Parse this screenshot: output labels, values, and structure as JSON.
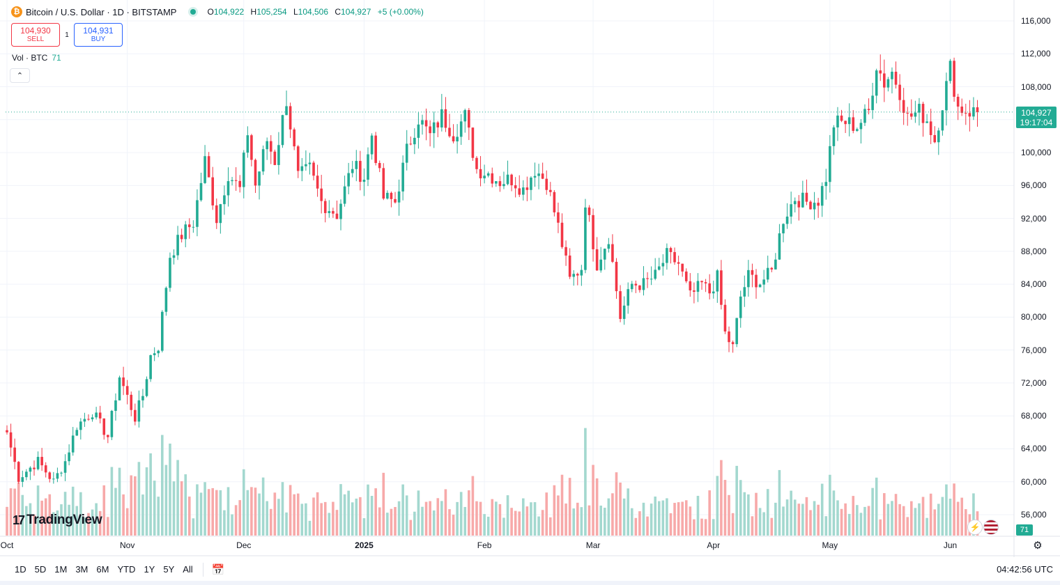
{
  "header": {
    "symbol": "Bitcoin / U.S. Dollar · 1D · BITSTAMP",
    "coin_glyph": "₿",
    "ohlc": {
      "o_label": "O",
      "o": "104,922",
      "h_label": "H",
      "h": "105,254",
      "l_label": "L",
      "l": "104,506",
      "c_label": "C",
      "c": "104,927",
      "change": "+5 (+0.00%)"
    }
  },
  "trade": {
    "sell_price": "104,930",
    "sell_label": "SELL",
    "spread": "1",
    "buy_price": "104,931",
    "buy_label": "BUY"
  },
  "volume_legend": {
    "label": "Vol · BTC",
    "value": "71"
  },
  "collapse_glyph": "⌃",
  "last_price_tag": {
    "price": "104,927",
    "countdown": "19:17:04"
  },
  "volume_tag": "71",
  "logo": {
    "mark": "17",
    "text": "TradingView"
  },
  "toolbar": {
    "ranges": [
      "1D",
      "5D",
      "1M",
      "3M",
      "6M",
      "YTD",
      "1Y",
      "5Y",
      "All"
    ],
    "date_range_glyph": "📅",
    "clock": "04:42:56 UTC"
  },
  "colors": {
    "up": "#22ab94",
    "down": "#f23645",
    "up_vol": "#a3d8cf",
    "down_vol": "#f7a9a9",
    "grid": "#f0f3fa",
    "last_price": "#22ab94"
  },
  "chart_data": {
    "type": "candlestick",
    "y_ticks": [
      116000,
      112000,
      108000,
      104000,
      100000,
      96000,
      92000,
      88000,
      84000,
      80000,
      76000,
      72000,
      68000,
      64000,
      60000,
      56000
    ],
    "y_tick_labels": [
      "116,000",
      "112,000",
      "108,000",
      "104,000",
      "100,000",
      "96,000",
      "92,000",
      "88,000",
      "84,000",
      "80,000",
      "76,000",
      "72,000",
      "68,000",
      "64,000",
      "60,000",
      "56,000"
    ],
    "ylim": [
      55500,
      117000
    ],
    "x_labels": [
      {
        "label": "Oct",
        "index": 0
      },
      {
        "label": "Nov",
        "index": 31
      },
      {
        "label": "Dec",
        "index": 61
      },
      {
        "label": "2025",
        "index": 92
      },
      {
        "label": "Feb",
        "index": 123
      },
      {
        "label": "Mar",
        "index": 151
      },
      {
        "label": "Apr",
        "index": 182
      },
      {
        "label": "May",
        "index": 212
      },
      {
        "label": "Jun",
        "index": 243
      }
    ],
    "last_price": 104927,
    "anchors": [
      [
        0,
        66000
      ],
      [
        3,
        60500
      ],
      [
        8,
        62500
      ],
      [
        12,
        60000
      ],
      [
        15,
        62500
      ],
      [
        18,
        66800
      ],
      [
        22,
        68500
      ],
      [
        26,
        65500
      ],
      [
        29,
        72800
      ],
      [
        33,
        67800
      ],
      [
        35,
        70500
      ],
      [
        37,
        75300
      ],
      [
        39,
        76500
      ],
      [
        42,
        87500
      ],
      [
        45,
        90000
      ],
      [
        48,
        91500
      ],
      [
        51,
        99000
      ],
      [
        54,
        92000
      ],
      [
        57,
        97500
      ],
      [
        60,
        95500
      ],
      [
        62,
        102500
      ],
      [
        64,
        96000
      ],
      [
        67,
        101500
      ],
      [
        69,
        99000
      ],
      [
        72,
        106500
      ],
      [
        75,
        97000
      ],
      [
        78,
        98000
      ],
      [
        81,
        94000
      ],
      [
        85,
        92500
      ],
      [
        89,
        98500
      ],
      [
        92,
        97000
      ],
      [
        94,
        102200
      ],
      [
        97,
        94500
      ],
      [
        100,
        94000
      ],
      [
        103,
        100200
      ],
      [
        106,
        104200
      ],
      [
        109,
        102000
      ],
      [
        112,
        104500
      ],
      [
        115,
        102300
      ],
      [
        118,
        104400
      ],
      [
        121,
        98000
      ],
      [
        124,
        97500
      ],
      [
        127,
        96500
      ],
      [
        130,
        96800
      ],
      [
        133,
        95500
      ],
      [
        136,
        98000
      ],
      [
        139,
        96500
      ],
      [
        142,
        91000
      ],
      [
        145,
        84500
      ],
      [
        148,
        86000
      ],
      [
        149,
        94200
      ],
      [
        152,
        86500
      ],
      [
        155,
        89800
      ],
      [
        158,
        80000
      ],
      [
        161,
        84000
      ],
      [
        164,
        84000
      ],
      [
        167,
        85000
      ],
      [
        170,
        87500
      ],
      [
        173,
        86500
      ],
      [
        176,
        82500
      ],
      [
        179,
        84000
      ],
      [
        181,
        83000
      ],
      [
        183,
        84800
      ],
      [
        185,
        78000
      ],
      [
        187,
        76300
      ],
      [
        189,
        82500
      ],
      [
        191,
        85000
      ],
      [
        194,
        84200
      ],
      [
        197,
        85500
      ],
      [
        200,
        92000
      ],
      [
        203,
        94500
      ],
      [
        206,
        94000
      ],
      [
        209,
        94200
      ],
      [
        211,
        97000
      ],
      [
        213,
        103500
      ],
      [
        216,
        103700
      ],
      [
        219,
        103200
      ],
      [
        222,
        105000
      ],
      [
        224,
        110800
      ],
      [
        226,
        108500
      ],
      [
        228,
        109800
      ],
      [
        230,
        107500
      ],
      [
        232,
        104200
      ],
      [
        235,
        105000
      ],
      [
        237,
        104000
      ],
      [
        239,
        101500
      ],
      [
        241,
        106000
      ],
      [
        243,
        110300
      ],
      [
        245,
        105500
      ],
      [
        248,
        105000
      ],
      [
        250,
        104927
      ]
    ]
  }
}
